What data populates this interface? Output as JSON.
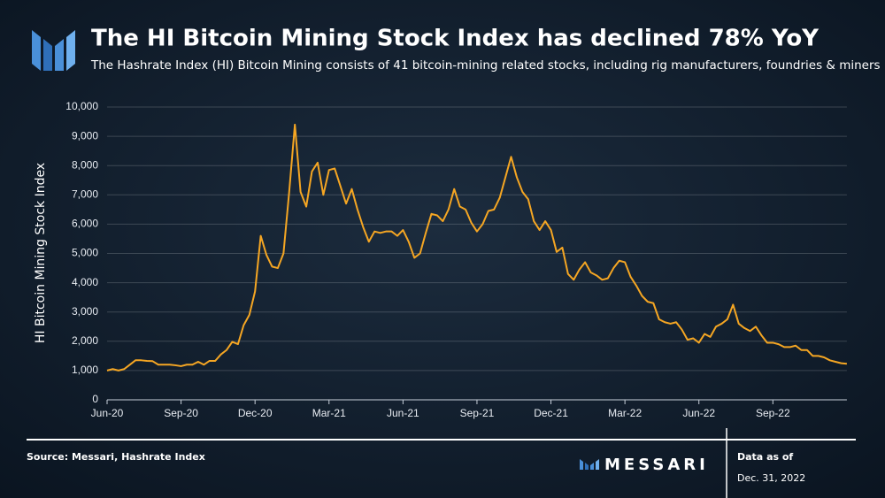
{
  "chart_data": {
    "type": "line",
    "title": "The HI Bitcoin Mining Stock Index has declined 78% YoY",
    "subtitle": "The Hashrate Index (HI) Bitcoin Mining consists of 41 bitcoin-mining related stocks, including rig manufacturers, foundries & miners",
    "y_label": "HI Bitcoin Mining Stock Index",
    "source": "Source: Messari, Hashrate Index",
    "brand": "MESSARI",
    "date_caption": "Data as of",
    "date": "Dec. 31, 2022",
    "color": "#f5a623",
    "grid": true,
    "ylim": [
      0,
      10000
    ],
    "yticks": [
      0,
      {
        "value": 1000,
        "label": "1,000"
      },
      {
        "value": 2000,
        "label": "2,000"
      },
      {
        "value": 3000,
        "label": "3,000"
      },
      {
        "value": 4000,
        "label": "4,000"
      },
      {
        "value": 5000,
        "label": "5,000"
      },
      {
        "value": 6000,
        "label": "6,000"
      },
      {
        "value": 7000,
        "label": "7,000"
      },
      {
        "value": 8000,
        "label": "8,000"
      },
      {
        "value": 9000,
        "label": "9,000"
      },
      {
        "value": 10000,
        "label": "10,000"
      }
    ],
    "categories": [
      "Jun-20",
      null,
      null,
      null,
      null,
      null,
      null,
      null,
      null,
      null,
      null,
      null,
      null,
      "Sep-20",
      null,
      null,
      null,
      null,
      null,
      null,
      null,
      null,
      null,
      null,
      null,
      null,
      "Dec-20",
      null,
      null,
      null,
      null,
      null,
      null,
      null,
      null,
      null,
      null,
      null,
      null,
      "Mar-21",
      null,
      null,
      null,
      null,
      null,
      null,
      null,
      null,
      null,
      null,
      null,
      null,
      "Jun-21",
      null,
      null,
      null,
      null,
      null,
      null,
      null,
      null,
      null,
      null,
      null,
      null,
      "Sep-21",
      null,
      null,
      null,
      null,
      null,
      null,
      null,
      null,
      null,
      null,
      null,
      null,
      "Dec-21",
      null,
      null,
      null,
      null,
      null,
      null,
      null,
      null,
      null,
      null,
      null,
      null,
      "Mar-22",
      null,
      null,
      null,
      null,
      null,
      null,
      null,
      null,
      null,
      null,
      null,
      null,
      "Jun-22",
      null,
      null,
      null,
      null,
      null,
      null,
      null,
      null,
      null,
      null,
      null,
      null,
      "Sep-22",
      null,
      null,
      null,
      null,
      null,
      null,
      null,
      null,
      null,
      null,
      null,
      null,
      null
    ],
    "values": [
      1000,
      1050,
      1000,
      1050,
      1200,
      1350,
      1350,
      1330,
      1320,
      1200,
      1200,
      1200,
      1180,
      1150,
      1200,
      1200,
      1300,
      1200,
      1330,
      1330,
      1550,
      1700,
      1980,
      1900,
      2550,
      2900,
      3700,
      5600,
      4950,
      4550,
      4500,
      5000,
      7100,
      9400,
      7100,
      6600,
      7800,
      8100,
      7000,
      7850,
      7900,
      7300,
      6700,
      7200,
      6500,
      5900,
      5400,
      5750,
      5700,
      5750,
      5750,
      5600,
      5800,
      5400,
      4850,
      5000,
      5700,
      6350,
      6300,
      6100,
      6500,
      7200,
      6600,
      6500,
      6050,
      5750,
      6000,
      6450,
      6500,
      6900,
      7600,
      8300,
      7600,
      7100,
      6850,
      6100,
      5800,
      6100,
      5800,
      5050,
      5200,
      4300,
      4100,
      4450,
      4700,
      4350,
      4250,
      4100,
      4150,
      4500,
      4750,
      4700,
      4200,
      3900,
      3550,
      3350,
      3300,
      2750,
      2650,
      2600,
      2650,
      2400,
      2050,
      2100,
      1950,
      2250,
      2150,
      2500,
      2600,
      2750,
      3250,
      2600,
      2450,
      2350,
      2500,
      2200,
      1950,
      1950,
      1900,
      1800,
      1800,
      1850,
      1700,
      1700,
      1500,
      1500,
      1450,
      1350,
      1300,
      1250,
      1230
    ]
  }
}
